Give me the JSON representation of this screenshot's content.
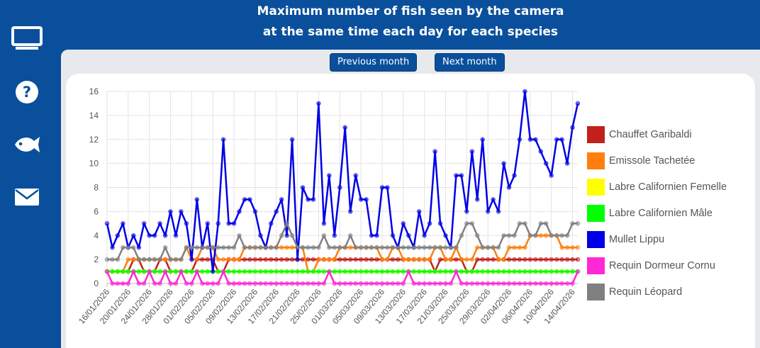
{
  "title": {
    "line1": "Maximum number of fish seen by the camera",
    "line2": "at the same time each day for each species"
  },
  "sidebar": {
    "items": [
      {
        "icon": "monitor-icon"
      },
      {
        "icon": "help-icon"
      },
      {
        "icon": "fish-icon"
      },
      {
        "icon": "mail-icon"
      }
    ]
  },
  "nav": {
    "previous_label": "Previous month",
    "next_label": "Next month"
  },
  "colors": {
    "brand": "#0a4f9c",
    "panel": "#e7e9ec"
  },
  "chart_data": {
    "type": "line",
    "title": "",
    "xlabel": "",
    "ylabel": "",
    "ylim": [
      0,
      16
    ],
    "yticks": [
      0,
      2,
      4,
      6,
      8,
      10,
      12,
      14,
      16
    ],
    "grid": true,
    "legend_position": "right",
    "x_start": "16/01/2026",
    "x_end": "15/04/2026",
    "x_tick_labels": [
      "16/01/2026",
      "20/01/2026",
      "24/01/2026",
      "28/01/2026",
      "01/02/2026",
      "05/02/2026",
      "09/02/2026",
      "13/02/2026",
      "17/02/2026",
      "21/02/2026",
      "25/02/2026",
      "01/03/2026",
      "05/03/2026",
      "09/03/2026",
      "13/03/2026",
      "17/03/2026",
      "21/03/2026",
      "25/03/2026",
      "29/03/2026",
      "02/04/2026",
      "06/04/2026",
      "10/04/2026",
      "14/04/2026"
    ],
    "series": [
      {
        "name": "Chauffet Garibaldi",
        "color": "#c1201b",
        "values": [
          1,
          1,
          1,
          1,
          1,
          2,
          2,
          1,
          1,
          1,
          2,
          2,
          1,
          1,
          1,
          1,
          1,
          2,
          2,
          2,
          2,
          1,
          1,
          2,
          2,
          2,
          2,
          2,
          2,
          2,
          2,
          2,
          2,
          2,
          2,
          2,
          2,
          2,
          2,
          2,
          2,
          2,
          2,
          2,
          2,
          2,
          2,
          2,
          2,
          2,
          2,
          2,
          2,
          2,
          2,
          2,
          2,
          2,
          2,
          2,
          2,
          2,
          1,
          2,
          2,
          2,
          2,
          2,
          1,
          1,
          2,
          2,
          2,
          2,
          2,
          2,
          2,
          2,
          2,
          2,
          2,
          2,
          2,
          2,
          2,
          2,
          2,
          2,
          2,
          2
        ]
      },
      {
        "name": "Emissole Tachetée",
        "color": "#ff7f0e",
        "values": [
          1,
          1,
          1,
          1,
          2,
          2,
          2,
          2,
          2,
          2,
          2,
          2,
          2,
          2,
          2,
          3,
          2,
          2,
          3,
          3,
          3,
          2,
          2,
          2,
          2,
          2,
          3,
          3,
          3,
          3,
          3,
          3,
          3,
          3,
          3,
          3,
          3,
          3,
          1,
          1,
          2,
          2,
          2,
          2,
          3,
          3,
          3,
          3,
          3,
          3,
          3,
          3,
          2,
          2,
          3,
          3,
          2,
          2,
          2,
          2,
          2,
          2,
          3,
          3,
          2,
          2,
          3,
          2,
          2,
          2,
          3,
          3,
          3,
          3,
          2,
          2,
          3,
          3,
          3,
          3,
          4,
          4,
          4,
          4,
          4,
          4,
          3,
          3,
          3,
          3
        ]
      },
      {
        "name": "Labre Californien Femelle",
        "color": "#ffff00",
        "values": [
          1,
          1,
          1,
          1,
          1,
          1,
          1,
          1,
          1,
          1,
          1,
          1,
          1,
          1,
          1,
          1,
          1,
          1,
          1,
          1,
          1,
          1,
          1,
          1,
          1,
          1,
          1,
          1,
          1,
          1,
          1,
          1,
          1,
          1,
          1,
          1,
          1,
          1,
          1,
          1,
          1,
          1,
          1,
          1,
          1,
          1,
          1,
          1,
          1,
          1,
          1,
          1,
          1,
          1,
          1,
          1,
          1,
          1,
          1,
          1,
          1,
          1,
          1,
          1,
          1,
          1,
          1,
          1,
          1,
          1,
          1,
          1,
          1,
          1,
          1,
          1,
          1,
          1,
          1,
          1,
          1,
          1,
          1,
          1,
          1,
          1,
          1,
          1,
          1,
          1
        ]
      },
      {
        "name": "Labre Californien Mâle",
        "color": "#00ff00",
        "values": [
          1,
          1,
          1,
          1,
          1,
          1,
          1,
          1,
          1,
          1,
          1,
          1,
          1,
          1,
          1,
          1,
          1,
          1,
          1,
          1,
          1,
          1,
          1,
          1,
          1,
          1,
          1,
          1,
          1,
          1,
          1,
          1,
          1,
          1,
          1,
          1,
          1,
          1,
          1,
          1,
          1,
          1,
          1,
          1,
          1,
          1,
          1,
          1,
          1,
          1,
          1,
          1,
          1,
          1,
          1,
          1,
          1,
          1,
          1,
          1,
          1,
          1,
          1,
          1,
          1,
          1,
          1,
          1,
          1,
          1,
          1,
          1,
          1,
          1,
          1,
          1,
          1,
          1,
          1,
          1,
          1,
          1,
          1,
          1,
          1,
          1,
          1,
          1,
          1,
          1
        ]
      },
      {
        "name": "Mullet Lippu",
        "color": "#0000e6",
        "values": [
          5,
          3,
          4,
          5,
          3,
          4,
          3,
          5,
          4,
          4,
          5,
          4,
          6,
          4,
          6,
          5,
          2,
          7,
          3,
          5,
          1,
          5,
          12,
          5,
          5,
          6,
          7,
          7,
          6,
          4,
          3,
          5,
          6,
          7,
          4,
          12,
          2,
          8,
          7,
          7,
          15,
          5,
          9,
          4,
          8,
          13,
          6,
          9,
          7,
          7,
          4,
          4,
          8,
          8,
          4,
          3,
          5,
          4,
          3,
          6,
          4,
          5,
          11,
          5,
          4,
          3,
          9,
          9,
          6,
          11,
          7,
          12,
          6,
          7,
          6,
          10,
          8,
          9,
          12,
          16,
          12,
          12,
          11,
          10,
          9,
          12,
          12,
          10,
          13,
          15
        ]
      },
      {
        "name": "Requin Dormeur Cornu",
        "color": "#ff28d5",
        "values": [
          1,
          0,
          0,
          0,
          0,
          1,
          0,
          0,
          1,
          0,
          0,
          1,
          0,
          0,
          1,
          0,
          0,
          1,
          0,
          0,
          0,
          0,
          1,
          0,
          0,
          0,
          0,
          0,
          0,
          0,
          0,
          0,
          0,
          0,
          0,
          0,
          0,
          0,
          0,
          0,
          0,
          0,
          1,
          0,
          0,
          0,
          0,
          0,
          0,
          0,
          0,
          0,
          0,
          0,
          0,
          0,
          0,
          1,
          0,
          0,
          0,
          0,
          0,
          0,
          0,
          0,
          1,
          0,
          0,
          0,
          0,
          0,
          0,
          0,
          0,
          0,
          0,
          0,
          0,
          0,
          0,
          0,
          0,
          0,
          0,
          0,
          0,
          0,
          0,
          1
        ]
      },
      {
        "name": "Requin Léopard",
        "color": "#808080",
        "values": [
          2,
          2,
          2,
          3,
          3,
          3,
          2,
          2,
          2,
          2,
          2,
          3,
          2,
          2,
          2,
          3,
          3,
          3,
          3,
          3,
          3,
          3,
          3,
          3,
          3,
          4,
          3,
          3,
          3,
          3,
          3,
          3,
          3,
          4,
          5,
          4,
          3,
          3,
          3,
          3,
          3,
          4,
          3,
          3,
          3,
          3,
          4,
          3,
          3,
          3,
          3,
          3,
          3,
          3,
          3,
          3,
          3,
          3,
          3,
          3,
          3,
          3,
          3,
          3,
          3,
          3,
          3,
          4,
          5,
          5,
          4,
          3,
          3,
          3,
          3,
          4,
          4,
          4,
          5,
          5,
          4,
          4,
          5,
          5,
          4,
          4,
          4,
          4,
          5,
          5
        ]
      }
    ]
  }
}
